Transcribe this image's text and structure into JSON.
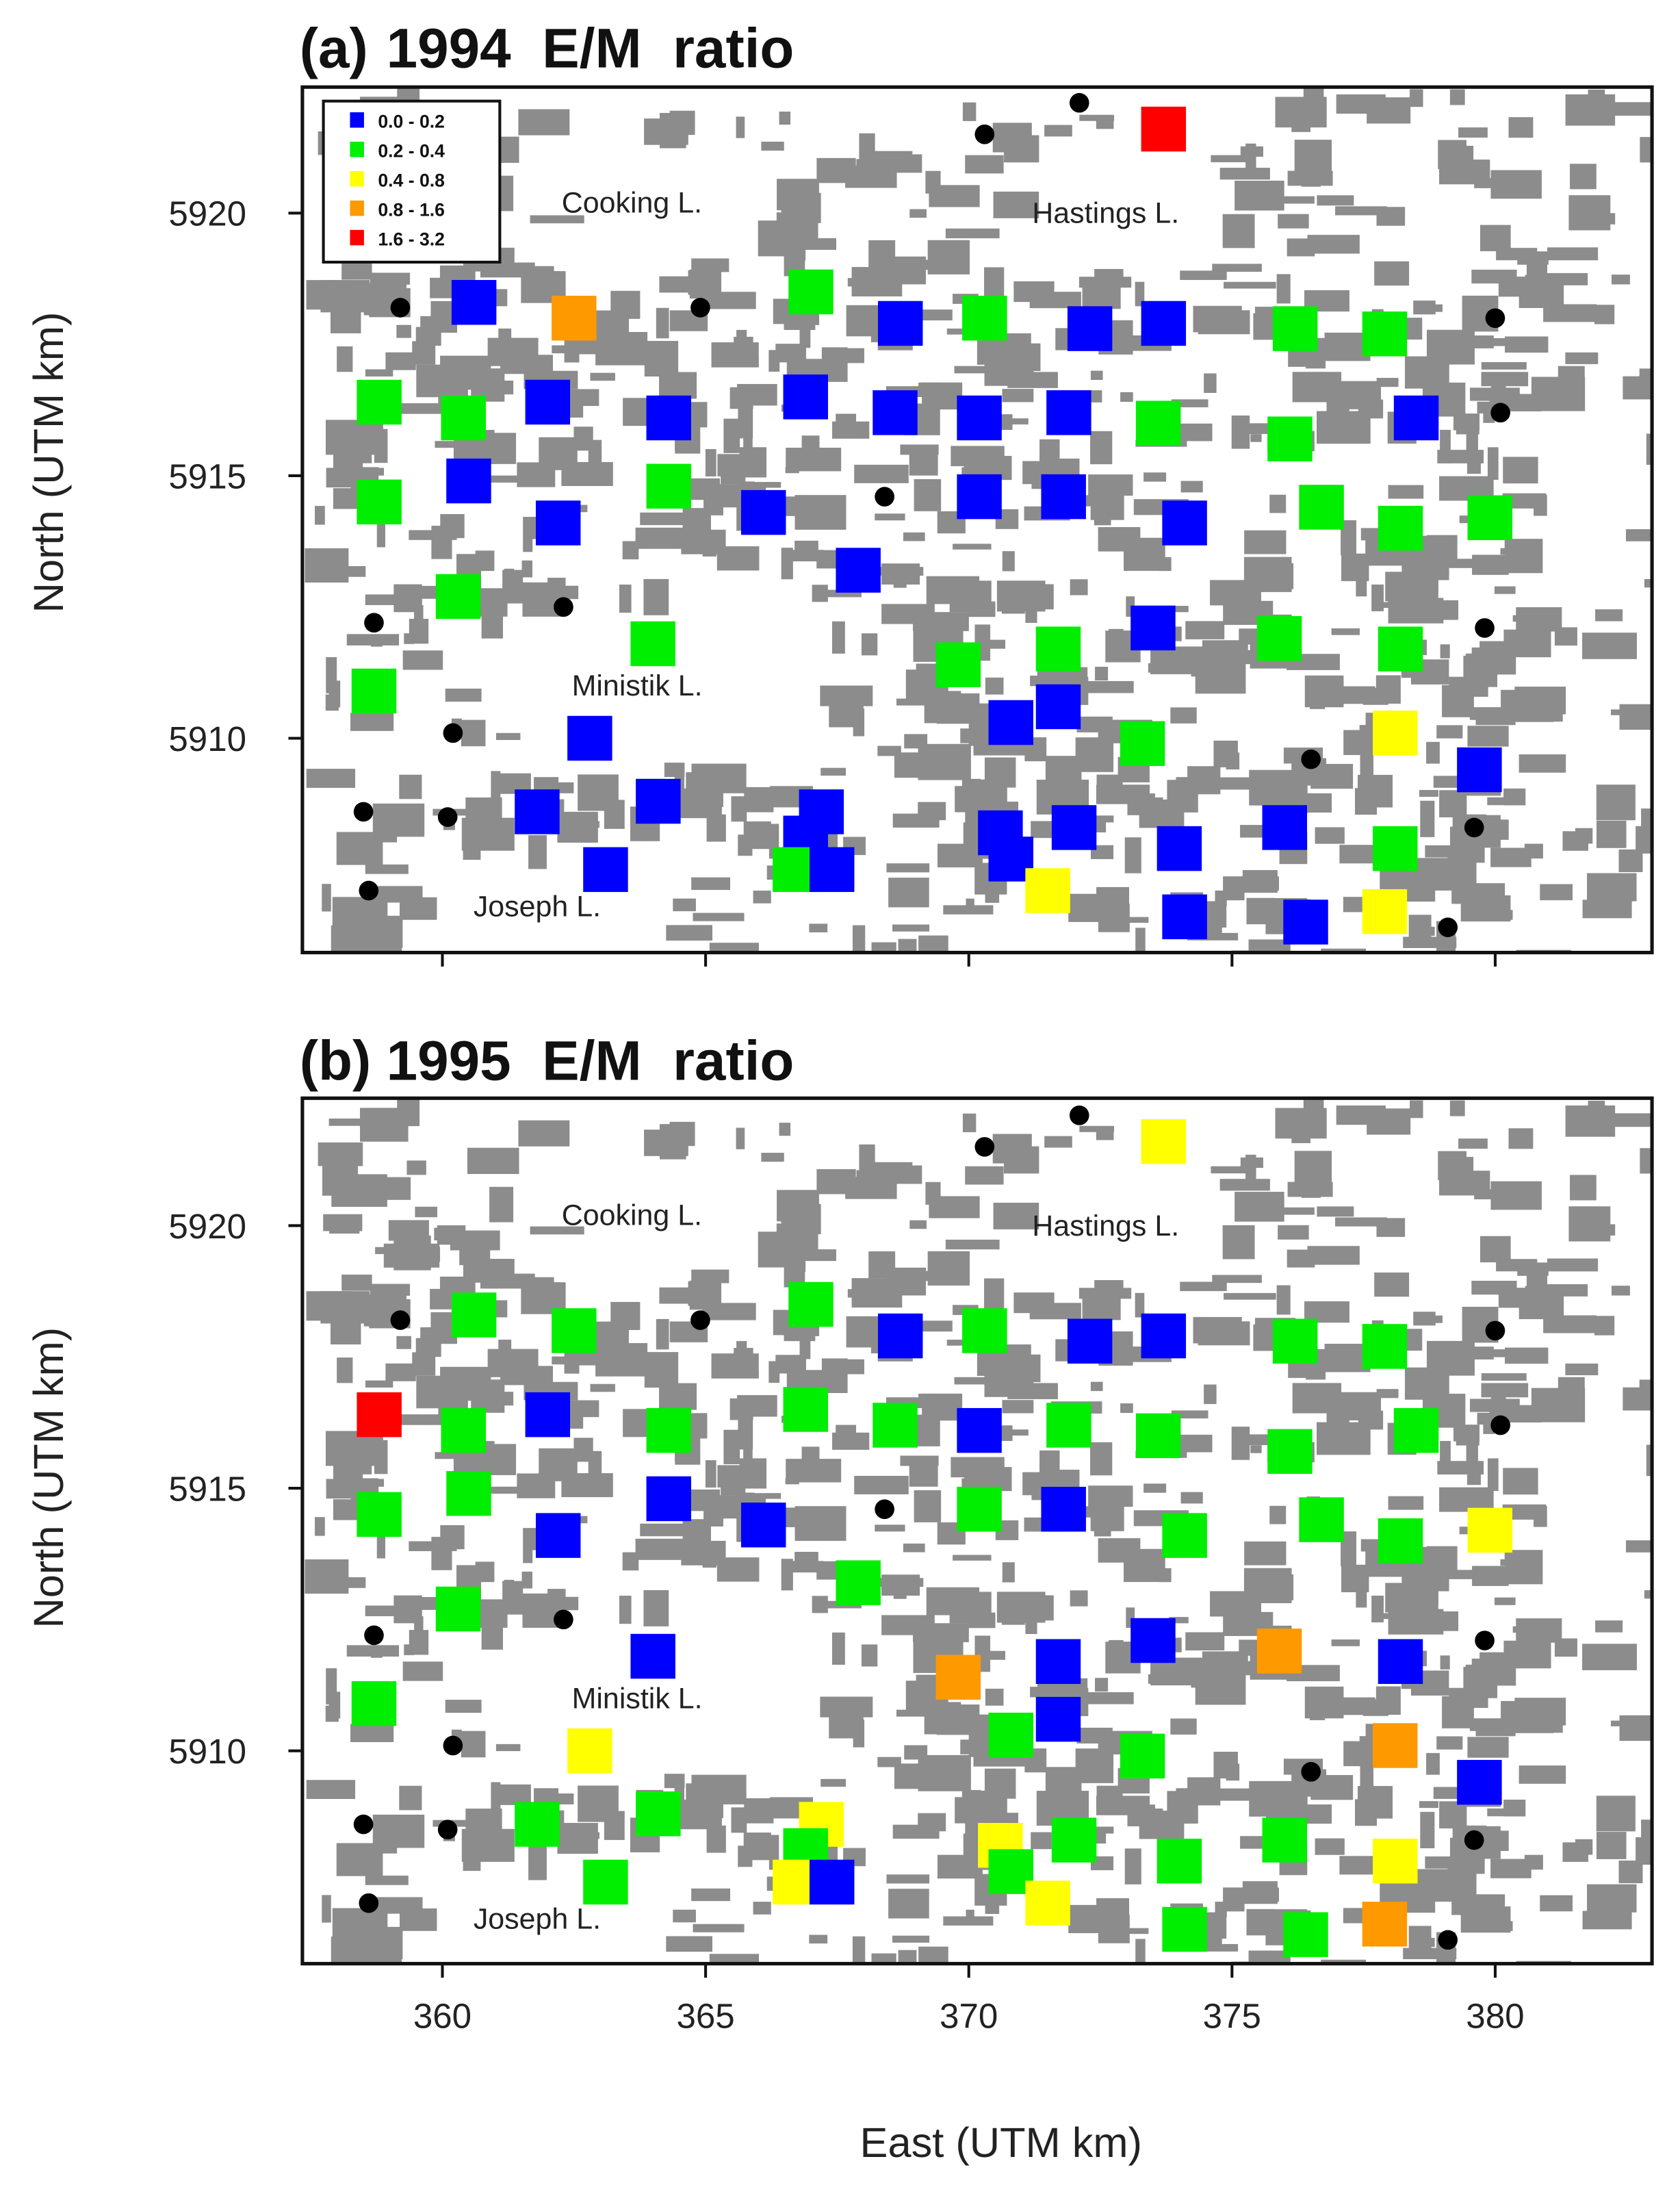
{
  "chart_data": {
    "type": "scatter",
    "xlabel": "East (UTM km)",
    "ylabel": "North (UTM km)",
    "xlim": [
      357.3,
      383.0
    ],
    "ylim": [
      5905.9,
      5922.4
    ],
    "xticks": [
      360,
      365,
      370,
      375,
      380
    ],
    "yticks": [
      5910,
      5915,
      5920
    ],
    "grid": false,
    "legend": {
      "placement": "top-left",
      "entries": [
        {
          "label": "0.0 - 0.2",
          "color": "#0000ff"
        },
        {
          "label": "0.2 - 0.4",
          "color": "#00ee00"
        },
        {
          "label": "0.4 - 0.8",
          "color": "#ffff00"
        },
        {
          "label": "0.8 - 1.6",
          "color": "#ff9900"
        },
        {
          "label": "1.6 - 3.2",
          "color": "#ff0000"
        }
      ]
    },
    "panels": [
      {
        "tag": "(a)",
        "title": "1994  E/M  ratio",
        "class_index": 2
      },
      {
        "tag": "(b)",
        "title": "1995  E/M  ratio",
        "class_index": 3
      }
    ],
    "annotations": [
      {
        "text": "Cooking L.",
        "x": 363.6,
        "y": 5920.2
      },
      {
        "text": "Hastings L.",
        "x": 372.6,
        "y": 5920.0
      },
      {
        "text": "Ministik L.",
        "x": 363.7,
        "y": 5911.0
      },
      {
        "text": "Joseph L.",
        "x": 361.8,
        "y": 5906.8
      }
    ],
    "stations_fields": [
      "east_km",
      "north_km",
      "class_1994",
      "class_1995"
    ],
    "stations": [
      [
        373.7,
        5921.6,
        4,
        2
      ],
      [
        360.6,
        5918.3,
        0,
        1
      ],
      [
        362.5,
        5918.0,
        3,
        1
      ],
      [
        367.0,
        5918.5,
        1,
        1
      ],
      [
        368.7,
        5917.9,
        0,
        0
      ],
      [
        370.3,
        5918.0,
        1,
        1
      ],
      [
        372.3,
        5917.8,
        0,
        0
      ],
      [
        373.7,
        5917.9,
        0,
        0
      ],
      [
        376.2,
        5917.8,
        1,
        1
      ],
      [
        377.9,
        5917.7,
        1,
        1
      ],
      [
        358.8,
        5916.4,
        1,
        4
      ],
      [
        360.4,
        5916.1,
        1,
        1
      ],
      [
        362.0,
        5916.4,
        0,
        0
      ],
      [
        364.3,
        5916.1,
        0,
        1
      ],
      [
        366.9,
        5916.5,
        0,
        1
      ],
      [
        368.6,
        5916.2,
        0,
        1
      ],
      [
        370.2,
        5916.1,
        0,
        0
      ],
      [
        371.9,
        5916.2,
        0,
        1
      ],
      [
        373.6,
        5916.0,
        1,
        1
      ],
      [
        376.1,
        5915.7,
        1,
        1
      ],
      [
        378.5,
        5916.1,
        0,
        1
      ],
      [
        358.8,
        5914.5,
        1,
        1
      ],
      [
        360.5,
        5914.9,
        0,
        1
      ],
      [
        362.2,
        5914.1,
        0,
        0
      ],
      [
        364.3,
        5914.8,
        1,
        0
      ],
      [
        366.1,
        5914.3,
        0,
        0
      ],
      [
        370.2,
        5914.6,
        0,
        1
      ],
      [
        371.8,
        5914.6,
        0,
        0
      ],
      [
        374.1,
        5914.1,
        0,
        1
      ],
      [
        376.7,
        5914.4,
        1,
        1
      ],
      [
        378.2,
        5914.0,
        1,
        1
      ],
      [
        379.9,
        5914.2,
        1,
        2
      ],
      [
        367.9,
        5913.2,
        0,
        1
      ],
      [
        360.3,
        5912.7,
        1,
        1
      ],
      [
        364.0,
        5911.8,
        1,
        0
      ],
      [
        373.5,
        5912.1,
        0,
        0
      ],
      [
        369.8,
        5911.4,
        1,
        3
      ],
      [
        371.7,
        5911.7,
        1,
        0
      ],
      [
        375.9,
        5911.9,
        1,
        3
      ],
      [
        378.2,
        5911.7,
        1,
        0
      ],
      [
        358.7,
        5910.9,
        1,
        1
      ],
      [
        362.8,
        5910.0,
        0,
        2
      ],
      [
        370.8,
        5910.3,
        0,
        1
      ],
      [
        371.7,
        5910.6,
        0,
        0
      ],
      [
        373.3,
        5909.9,
        1,
        1
      ],
      [
        378.1,
        5910.1,
        2,
        3
      ],
      [
        379.7,
        5909.4,
        0,
        0
      ],
      [
        361.8,
        5908.6,
        0,
        1
      ],
      [
        364.1,
        5908.8,
        0,
        1
      ],
      [
        367.2,
        5908.6,
        0,
        2
      ],
      [
        366.9,
        5908.1,
        0,
        1
      ],
      [
        366.7,
        5907.5,
        1,
        2
      ],
      [
        367.4,
        5907.5,
        0,
        0
      ],
      [
        363.1,
        5907.5,
        0,
        1
      ],
      [
        370.6,
        5908.2,
        0,
        2
      ],
      [
        370.8,
        5907.7,
        0,
        1
      ],
      [
        372.0,
        5908.3,
        0,
        1
      ],
      [
        371.5,
        5907.1,
        2,
        2
      ],
      [
        374.0,
        5907.9,
        0,
        1
      ],
      [
        376.0,
        5908.3,
        0,
        1
      ],
      [
        378.1,
        5907.9,
        1,
        2
      ],
      [
        374.1,
        5906.6,
        0,
        1
      ],
      [
        376.4,
        5906.5,
        0,
        1
      ],
      [
        377.9,
        5906.7,
        2,
        3
      ]
    ],
    "reference_sites": [
      [
        359.2,
        5918.2
      ],
      [
        364.9,
        5918.2
      ],
      [
        370.3,
        5921.5
      ],
      [
        372.1,
        5922.1
      ],
      [
        380.0,
        5918.0
      ],
      [
        380.1,
        5916.2
      ],
      [
        368.4,
        5914.6
      ],
      [
        358.7,
        5912.2
      ],
      [
        362.3,
        5912.5
      ],
      [
        379.8,
        5912.1
      ],
      [
        360.2,
        5910.1
      ],
      [
        376.5,
        5909.6
      ],
      [
        358.5,
        5908.6
      ],
      [
        360.1,
        5908.5
      ],
      [
        379.6,
        5908.3
      ],
      [
        358.6,
        5907.1
      ],
      [
        379.1,
        5906.4
      ]
    ]
  }
}
